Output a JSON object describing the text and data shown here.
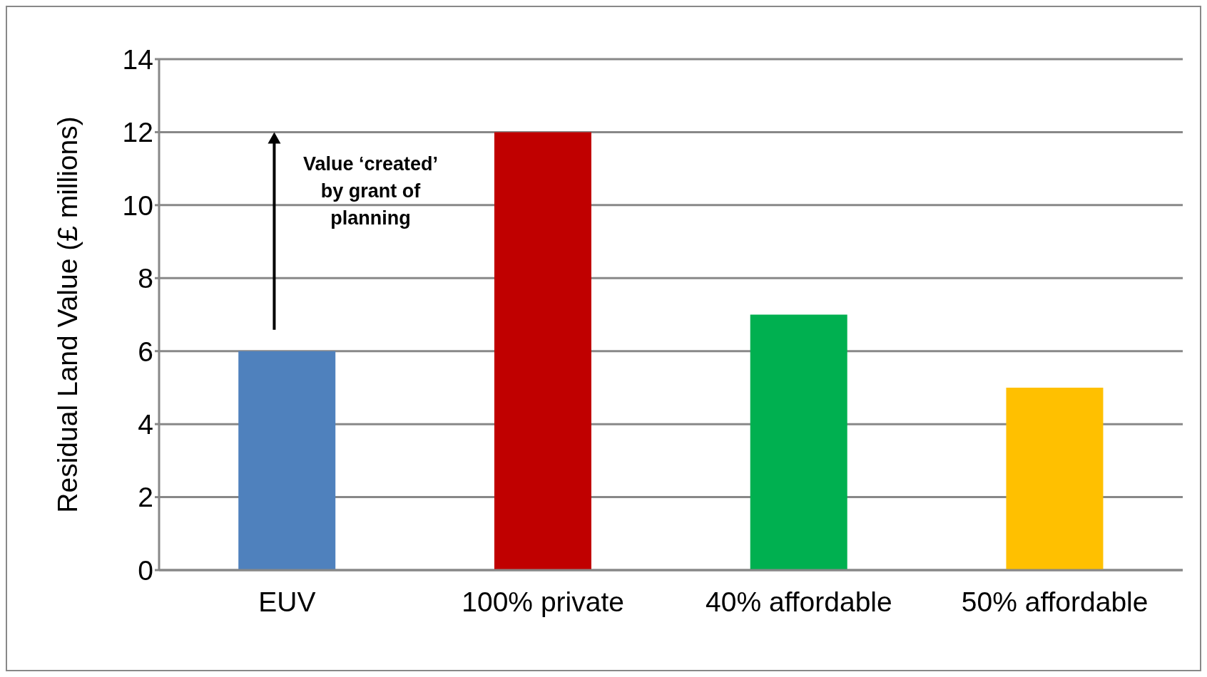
{
  "chart_data": {
    "type": "bar",
    "ylabel": "Residual Land Value (£ millions)",
    "categories": [
      "EUV",
      "100% private",
      "40% affordable",
      "50% affordable"
    ],
    "values": [
      6,
      12,
      7,
      5
    ],
    "colors": [
      "#4f81bd",
      "#c00000",
      "#00b050",
      "#ffc000"
    ],
    "ylim": [
      0,
      14
    ],
    "yticks": [
      0,
      2,
      4,
      6,
      8,
      10,
      12,
      14
    ],
    "grid": "y",
    "annotations": [
      "Value ‘created’ by grant of planning"
    ]
  }
}
